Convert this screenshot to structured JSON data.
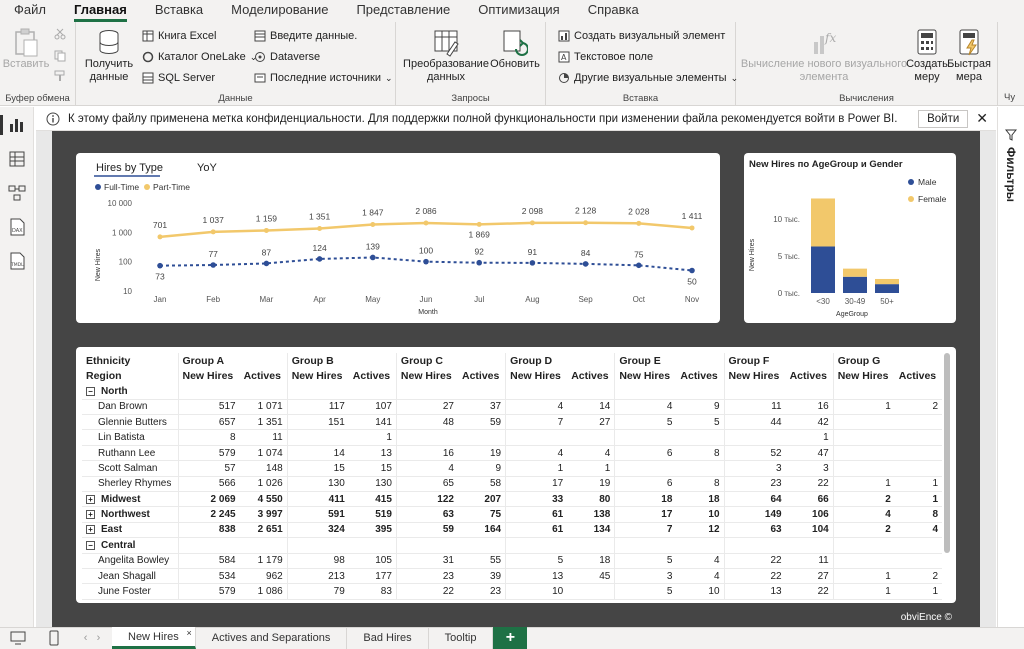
{
  "menu": {
    "items": [
      "Файл",
      "Главная",
      "Вставка",
      "Моделирование",
      "Представление",
      "Оптимизация",
      "Справка"
    ],
    "active_index": 1
  },
  "ribbon": {
    "clipboard": {
      "paste": "Вставить",
      "label": "Буфер обмена"
    },
    "data": {
      "get_data": "Получить данные",
      "excel": "Книга Excel",
      "onelake": "Каталог OneLake",
      "sql": "SQL Server",
      "enter_data": "Введите данные.",
      "dataverse": "Dataverse",
      "recent": "Последние источники",
      "label": "Данные"
    },
    "queries": {
      "transform": "Преобразование данных",
      "refresh": "Обновить",
      "label": "Запросы"
    },
    "insert": {
      "new_visual": "Создать визуальный элемент",
      "text_box": "Текстовое поле",
      "more_visuals": "Другие визуальные элементы",
      "label": "Вставка"
    },
    "calculations": {
      "new_visual_calc": "Вычисление нового визуального элемента",
      "new_measure": "Создать меру",
      "quick_measure": "Быстрая мера",
      "label": "Вычисления"
    },
    "cut_label": "Чу"
  },
  "infobar": {
    "message": "К этому файлу применена метка конфиденциальности. Для поддержки полной функциональности при изменении файла рекомендуется войти в Power BI.",
    "signin": "Войти"
  },
  "filters_label": "Фильтры",
  "line_chart": {
    "tabs": [
      "Hires by Type",
      "YoY"
    ],
    "legend": [
      {
        "name": "Full-Time",
        "color": "#2e4e96"
      },
      {
        "name": "Part-Time",
        "color": "#f2c86b"
      }
    ],
    "ylabel": "New Hires",
    "xlabel": "Month",
    "ytick_labels": [
      "10 000",
      "1 000",
      "100",
      "10"
    ],
    "ytick_values": [
      10000,
      1000,
      100,
      10
    ],
    "categories": [
      "Jan",
      "Feb",
      "Mar",
      "Apr",
      "May",
      "Jun",
      "Jul",
      "Aug",
      "Sep",
      "Oct",
      "Nov"
    ],
    "part_time": [
      701,
      1037,
      1159,
      1351,
      1847,
      2086,
      1869,
      2098,
      2128,
      2028,
      1411
    ],
    "part_time_labels": [
      "701",
      "1 037",
      "1 159",
      "1 351",
      "1 847",
      "2 086",
      "1 869",
      "2 098",
      "2 128",
      "2 028",
      "1 411"
    ],
    "full_time": [
      73,
      77,
      87,
      124,
      139,
      100,
      92,
      91,
      84,
      75,
      50
    ],
    "full_time_labels": [
      "73",
      "77",
      "87",
      "124",
      "139",
      "100",
      "92",
      "91",
      "84",
      "75",
      "50"
    ]
  },
  "bar_chart": {
    "title": "New Hires по AgeGroup и Gender",
    "ylabel": "New Hires",
    "xlabel": "AgeGroup",
    "ytick_labels": [
      "10 тыс.",
      "5 тыс.",
      "0 тыс."
    ],
    "ytick_values": [
      10000,
      5000,
      0
    ],
    "categories": [
      "<30",
      "30-49",
      "50+"
    ],
    "series": [
      {
        "name": "Male",
        "color": "#2e4e96",
        "values": [
          6300,
          2200,
          1200
        ]
      },
      {
        "name": "Female",
        "color": "#f2c86b",
        "values": [
          6500,
          1100,
          700
        ]
      }
    ]
  },
  "matrix": {
    "col_header1": "Ethnicity",
    "col_header2": "Region",
    "groups": [
      "Group A",
      "Group B",
      "Group C",
      "Group D",
      "Group E",
      "Group F",
      "Group G"
    ],
    "sub_headers": [
      "New Hires",
      "Actives"
    ],
    "rows": [
      {
        "type": "region",
        "label": "North",
        "expander": "−",
        "cells": [
          "",
          "",
          "",
          "",
          "",
          "",
          "",
          "",
          "",
          "",
          "",
          "",
          "",
          ""
        ]
      },
      {
        "type": "person",
        "label": "Dan Brown",
        "cells": [
          "517",
          "1 071",
          "117",
          "107",
          "27",
          "37",
          "4",
          "14",
          "4",
          "9",
          "11",
          "16",
          "1",
          "2"
        ]
      },
      {
        "type": "person",
        "label": "Glennie Butters",
        "cells": [
          "657",
          "1 351",
          "151",
          "141",
          "48",
          "59",
          "7",
          "27",
          "5",
          "5",
          "44",
          "42",
          "",
          ""
        ]
      },
      {
        "type": "person",
        "label": "Lin Batista",
        "cells": [
          "8",
          "11",
          "",
          "1",
          "",
          "",
          "",
          "",
          "",
          "",
          "",
          "1",
          "",
          ""
        ]
      },
      {
        "type": "person",
        "label": "Ruthann Lee",
        "cells": [
          "579",
          "1 074",
          "14",
          "13",
          "16",
          "19",
          "4",
          "4",
          "6",
          "8",
          "52",
          "47",
          "",
          ""
        ]
      },
      {
        "type": "person",
        "label": "Scott Salman",
        "cells": [
          "57",
          "148",
          "15",
          "15",
          "4",
          "9",
          "1",
          "1",
          "",
          "",
          "3",
          "3",
          "",
          ""
        ]
      },
      {
        "type": "person",
        "label": "Sherley Rhymes",
        "cells": [
          "566",
          "1 026",
          "130",
          "130",
          "65",
          "58",
          "17",
          "19",
          "6",
          "8",
          "23",
          "22",
          "1",
          "1"
        ]
      },
      {
        "type": "total",
        "label": "Midwest",
        "expander": "+",
        "cells": [
          "2 069",
          "4 550",
          "411",
          "415",
          "122",
          "207",
          "33",
          "80",
          "18",
          "18",
          "64",
          "66",
          "2",
          "1"
        ]
      },
      {
        "type": "total",
        "label": "Northwest",
        "expander": "+",
        "cells": [
          "2 245",
          "3 997",
          "591",
          "519",
          "63",
          "75",
          "61",
          "138",
          "17",
          "10",
          "149",
          "106",
          "4",
          "8"
        ]
      },
      {
        "type": "total",
        "label": "East",
        "expander": "+",
        "cells": [
          "838",
          "2 651",
          "324",
          "395",
          "59",
          "164",
          "61",
          "134",
          "7",
          "12",
          "63",
          "104",
          "2",
          "4"
        ]
      },
      {
        "type": "region",
        "label": "Central",
        "expander": "−",
        "cells": [
          "",
          "",
          "",
          "",
          "",
          "",
          "",
          "",
          "",
          "",
          "",
          "",
          "",
          ""
        ]
      },
      {
        "type": "person",
        "label": "Angelita Bowley",
        "cells": [
          "584",
          "1 179",
          "98",
          "105",
          "31",
          "55",
          "5",
          "18",
          "5",
          "4",
          "22",
          "11",
          "",
          ""
        ]
      },
      {
        "type": "person",
        "label": "Jean Shagall",
        "cells": [
          "534",
          "962",
          "213",
          "177",
          "23",
          "39",
          "13",
          "45",
          "3",
          "4",
          "22",
          "27",
          "1",
          "2"
        ]
      },
      {
        "type": "person",
        "label": "June Foster",
        "cells": [
          "579",
          "1 086",
          "79",
          "83",
          "22",
          "23",
          "10",
          "",
          "5",
          "10",
          "13",
          "22",
          "1",
          "1"
        ]
      }
    ]
  },
  "watermark": "obviEnce ©",
  "tabs": {
    "items": [
      "New Hires",
      "Actives and Separations",
      "Bad Hires",
      "Tooltip"
    ],
    "active_index": 0,
    "add": "+"
  }
}
